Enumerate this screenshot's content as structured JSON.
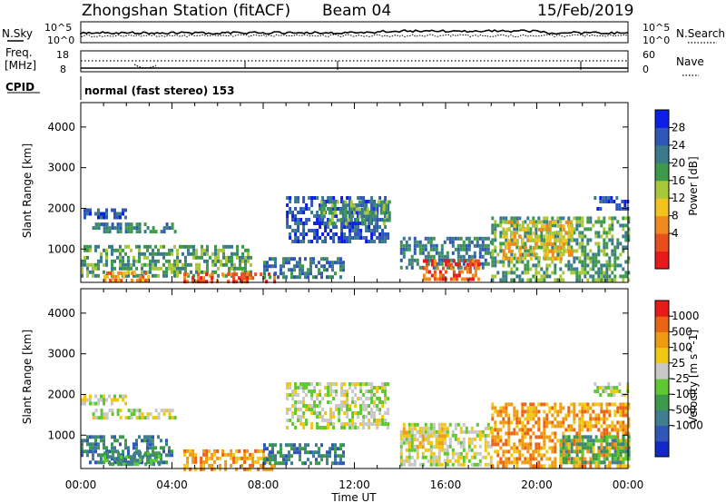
{
  "header": {
    "station": "Zhongshan Station (fitACF)",
    "beam": "Beam 04",
    "date": "15/Feb/2019"
  },
  "top_panels": {
    "noise": {
      "left_label": "N.Sky",
      "right_label": "N.Search",
      "left_ticks": [
        "10^5",
        "10^0"
      ],
      "right_ticks": [
        "10^5",
        "10^0"
      ]
    },
    "freq": {
      "left_label_1": "Freq.",
      "left_label_2": "[MHz]",
      "right_label": "Nave",
      "left_ticks": [
        "18",
        "8"
      ],
      "right_ticks": [
        "60",
        "0"
      ]
    },
    "cpid": {
      "label": "CPID",
      "text": "normal (fast stereo) 153"
    }
  },
  "axes": {
    "xlabel": "Time UT",
    "ylabel": "Slant Range [km]",
    "x_ticks": [
      "00:00",
      "04:00",
      "08:00",
      "12:00",
      "16:00",
      "20:00",
      "00:00"
    ],
    "y_ticks": [
      "1000",
      "2000",
      "3000",
      "4000"
    ]
  },
  "chart_data": [
    {
      "type": "heatmap",
      "title": "",
      "xlabel": "",
      "ylabel": "Slant Range [km]",
      "xlim": [
        0,
        24
      ],
      "ylim": [
        180,
        4600
      ],
      "colorbar": {
        "label": "Power [dB]",
        "ticks": [
          "4",
          "8",
          "12",
          "16",
          "20",
          "24",
          "28"
        ],
        "colors": [
          "#0d1fe6",
          "#2f56b8",
          "#3a7a8a",
          "#3e9a4a",
          "#a8c83a",
          "#f2c21e",
          "#f08a1e",
          "#ea4e1a",
          "#e81a1a"
        ]
      },
      "regions": [
        {
          "t": [
            0.0,
            2.0
          ],
          "r": [
            1800,
            2000
          ],
          "level": 1
        },
        {
          "t": [
            0.5,
            4.2
          ],
          "r": [
            1450,
            1650
          ],
          "level": 2
        },
        {
          "t": [
            0.0,
            7.5
          ],
          "r": [
            300,
            1100
          ],
          "level": 3
        },
        {
          "t": [
            1.0,
            3.0
          ],
          "r": [
            250,
            450
          ],
          "level": 6
        },
        {
          "t": [
            4.5,
            8.5
          ],
          "r": [
            200,
            420
          ],
          "level": 7
        },
        {
          "t": [
            8.0,
            11.5
          ],
          "r": [
            300,
            800
          ],
          "level": 2
        },
        {
          "t": [
            9.0,
            13.5
          ],
          "r": [
            1200,
            2300
          ],
          "level": 1
        },
        {
          "t": [
            10.5,
            13.5
          ],
          "r": [
            1650,
            2200
          ],
          "level": 3
        },
        {
          "t": [
            14.0,
            18.0
          ],
          "r": [
            500,
            1300
          ],
          "level": 2
        },
        {
          "t": [
            15.0,
            17.5
          ],
          "r": [
            250,
            750
          ],
          "level": 7
        },
        {
          "t": [
            18.0,
            24.0
          ],
          "r": [
            200,
            1800
          ],
          "level": 3
        },
        {
          "t": [
            18.5,
            21.5
          ],
          "r": [
            800,
            1700
          ],
          "level": 5
        },
        {
          "t": [
            22.5,
            24.0
          ],
          "r": [
            1950,
            2300
          ],
          "level": 1
        }
      ]
    },
    {
      "type": "heatmap",
      "title": "",
      "xlabel": "Time UT",
      "ylabel": "Slant Range [km]",
      "xlim": [
        0,
        24
      ],
      "ylim": [
        180,
        4600
      ],
      "colorbar": {
        "label": "Velocity [m s^-1]",
        "ticks": [
          "1000",
          "500",
          "100",
          "25",
          "-25",
          "-100",
          "-500",
          "-1000"
        ],
        "colors": [
          "#1428c8",
          "#2f56b8",
          "#3e7e8e",
          "#3c9a4c",
          "#5ec832",
          "#c8c8c8",
          "#f0c814",
          "#f09a14",
          "#ea6414",
          "#e81a1a"
        ]
      },
      "regions": [
        {
          "t": [
            0.0,
            2.0
          ],
          "r": [
            1800,
            2000
          ],
          "level": 5
        },
        {
          "t": [
            0.5,
            4.2
          ],
          "r": [
            1450,
            1650
          ],
          "level": 5
        },
        {
          "t": [
            0.0,
            4.0
          ],
          "r": [
            300,
            1000
          ],
          "level": 2
        },
        {
          "t": [
            1.0,
            3.5
          ],
          "r": [
            250,
            600
          ],
          "level": 3
        },
        {
          "t": [
            4.5,
            8.5
          ],
          "r": [
            200,
            650
          ],
          "level": 7
        },
        {
          "t": [
            8.0,
            11.5
          ],
          "r": [
            300,
            800
          ],
          "level": 2
        },
        {
          "t": [
            9.0,
            13.5
          ],
          "r": [
            1200,
            2300
          ],
          "level": 5
        },
        {
          "t": [
            14.0,
            18.0
          ],
          "r": [
            300,
            1300
          ],
          "level": 5
        },
        {
          "t": [
            14.0,
            16.0
          ],
          "r": [
            700,
            1200
          ],
          "level": 6
        },
        {
          "t": [
            18.0,
            24.0
          ],
          "r": [
            200,
            1800
          ],
          "level": 7
        },
        {
          "t": [
            21.0,
            24.0
          ],
          "r": [
            300,
            1000
          ],
          "level": 3
        },
        {
          "t": [
            22.5,
            24.0
          ],
          "r": [
            1950,
            2300
          ],
          "level": 5
        }
      ]
    }
  ]
}
